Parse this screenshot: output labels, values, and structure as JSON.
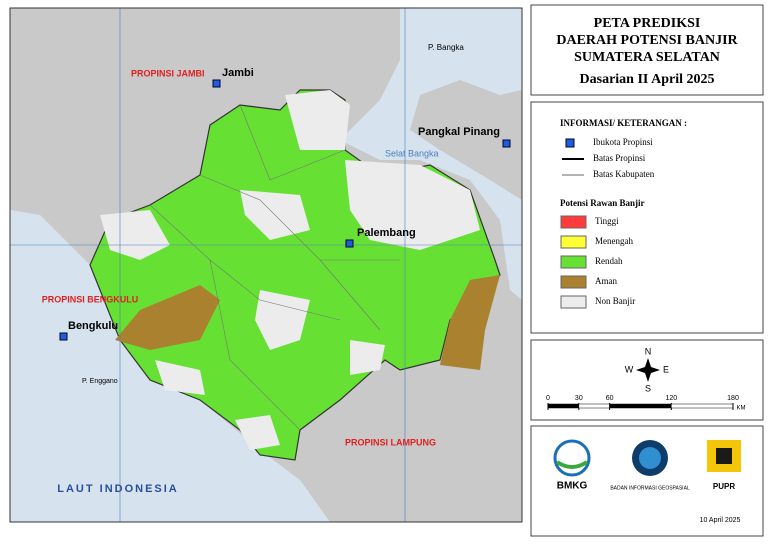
{
  "title": {
    "lines": [
      "PETA PREDIKSI",
      "DAERAH POTENSI BANJIR",
      "SUMATERA SELATAN"
    ],
    "period": "Dasarian II April 2025"
  },
  "legend": {
    "heading": "INFORMASI/ KETERANGAN :",
    "symbols": [
      "Ibukota Propinsi",
      "Batas Propinsi",
      "Batas Kabupaten"
    ],
    "class_heading": "Potensi Rawan Banjir",
    "classes": [
      {
        "label": "Tinggi",
        "color": "#ff3b3b"
      },
      {
        "label": "Menengah",
        "color": "#ffff33"
      },
      {
        "label": "Rendah",
        "color": "#66e033"
      },
      {
        "label": "Aman",
        "color": "#a9812f"
      },
      {
        "label": "Non Banjir",
        "color": "#ececec"
      }
    ]
  },
  "compass": [
    "N",
    "W",
    "E",
    "S"
  ],
  "scale": {
    "ticks": [
      0,
      30,
      60,
      120,
      180
    ],
    "unit": "KM"
  },
  "logos": [
    "BMKG",
    "BADAN INFORMASI GEOSPASIAL",
    "PUPR"
  ],
  "date": "10 April 2025",
  "map_labels": [
    "PROPINSI JAMBI",
    "Jambi",
    "P. Bangka",
    "Pangkal Pinang",
    "Selat Bangka",
    "Palembang",
    "PROPINSI BENGKULU",
    "Bengkulu",
    "P. Enggano",
    "PROPINSI LAMPUNG",
    "LAUT INDONESIA"
  ]
}
